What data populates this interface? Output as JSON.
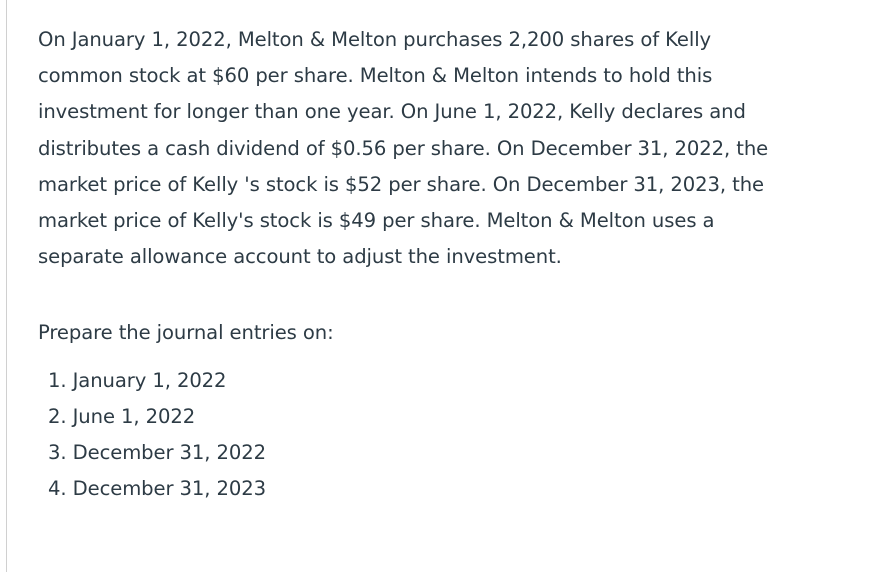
{
  "problem": {
    "lines": [
      "On January 1, 2022, Melton & Melton purchases 2,200 shares of Kelly",
      "common stock at $60 per share. Melton & Melton intends to hold this",
      "investment for longer than one year. On June 1, 2022, Kelly declares and",
      "distributes a cash dividend of $0.56 per share. On December 31, 2022, the",
      "market price of Kelly 's stock is $52 per share. On December 31, 2023, the",
      "market price of Kelly's stock is $49 per share. Melton & Melton uses a",
      "separate allowance account to adjust the investment."
    ]
  },
  "prompt": "Prepare the journal entries on:",
  "tasks": [
    "1. January 1, 2022",
    "2. June 1, 2022",
    "3. December 31, 2022",
    "4. December 31, 2023"
  ],
  "colors": {
    "text": "#2d3b45",
    "rule": "#d0d0d0",
    "background": "#ffffff"
  }
}
